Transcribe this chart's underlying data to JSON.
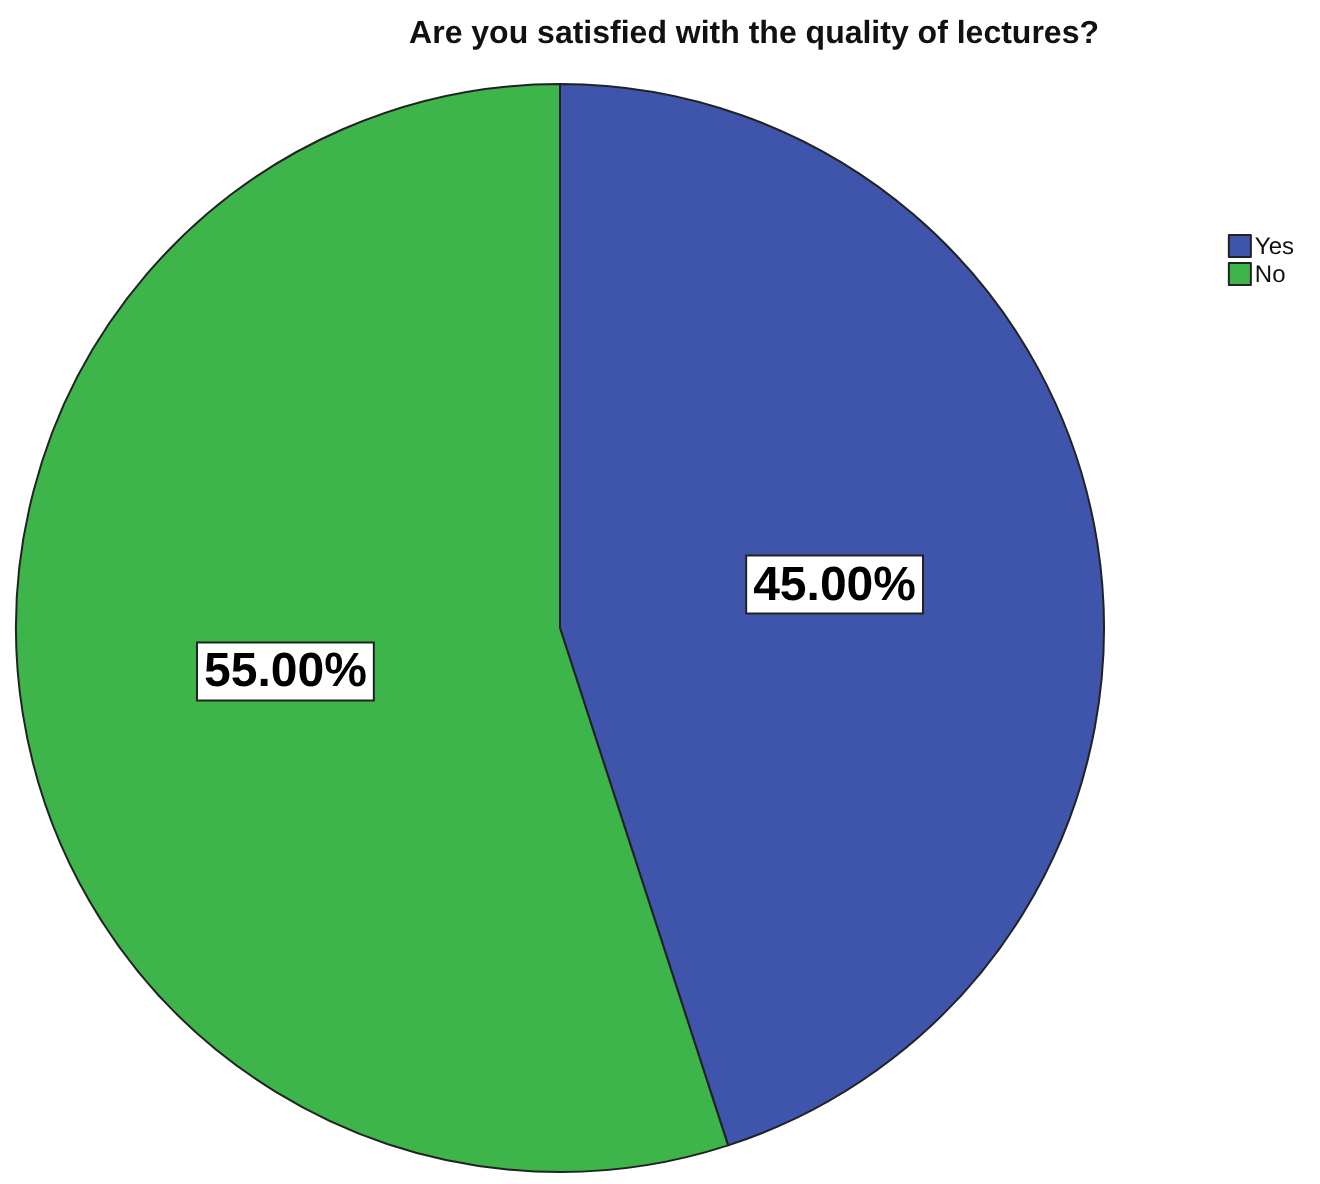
{
  "chart_data": {
    "type": "pie",
    "title": "Are you satisfied with the quality of lectures?",
    "categories": [
      "Yes",
      "No"
    ],
    "values": [
      45,
      55
    ],
    "colors": [
      "#3f55ac",
      "#3db54a"
    ],
    "value_labels": [
      "45.00%",
      "55.00%"
    ],
    "legend": "top right"
  }
}
